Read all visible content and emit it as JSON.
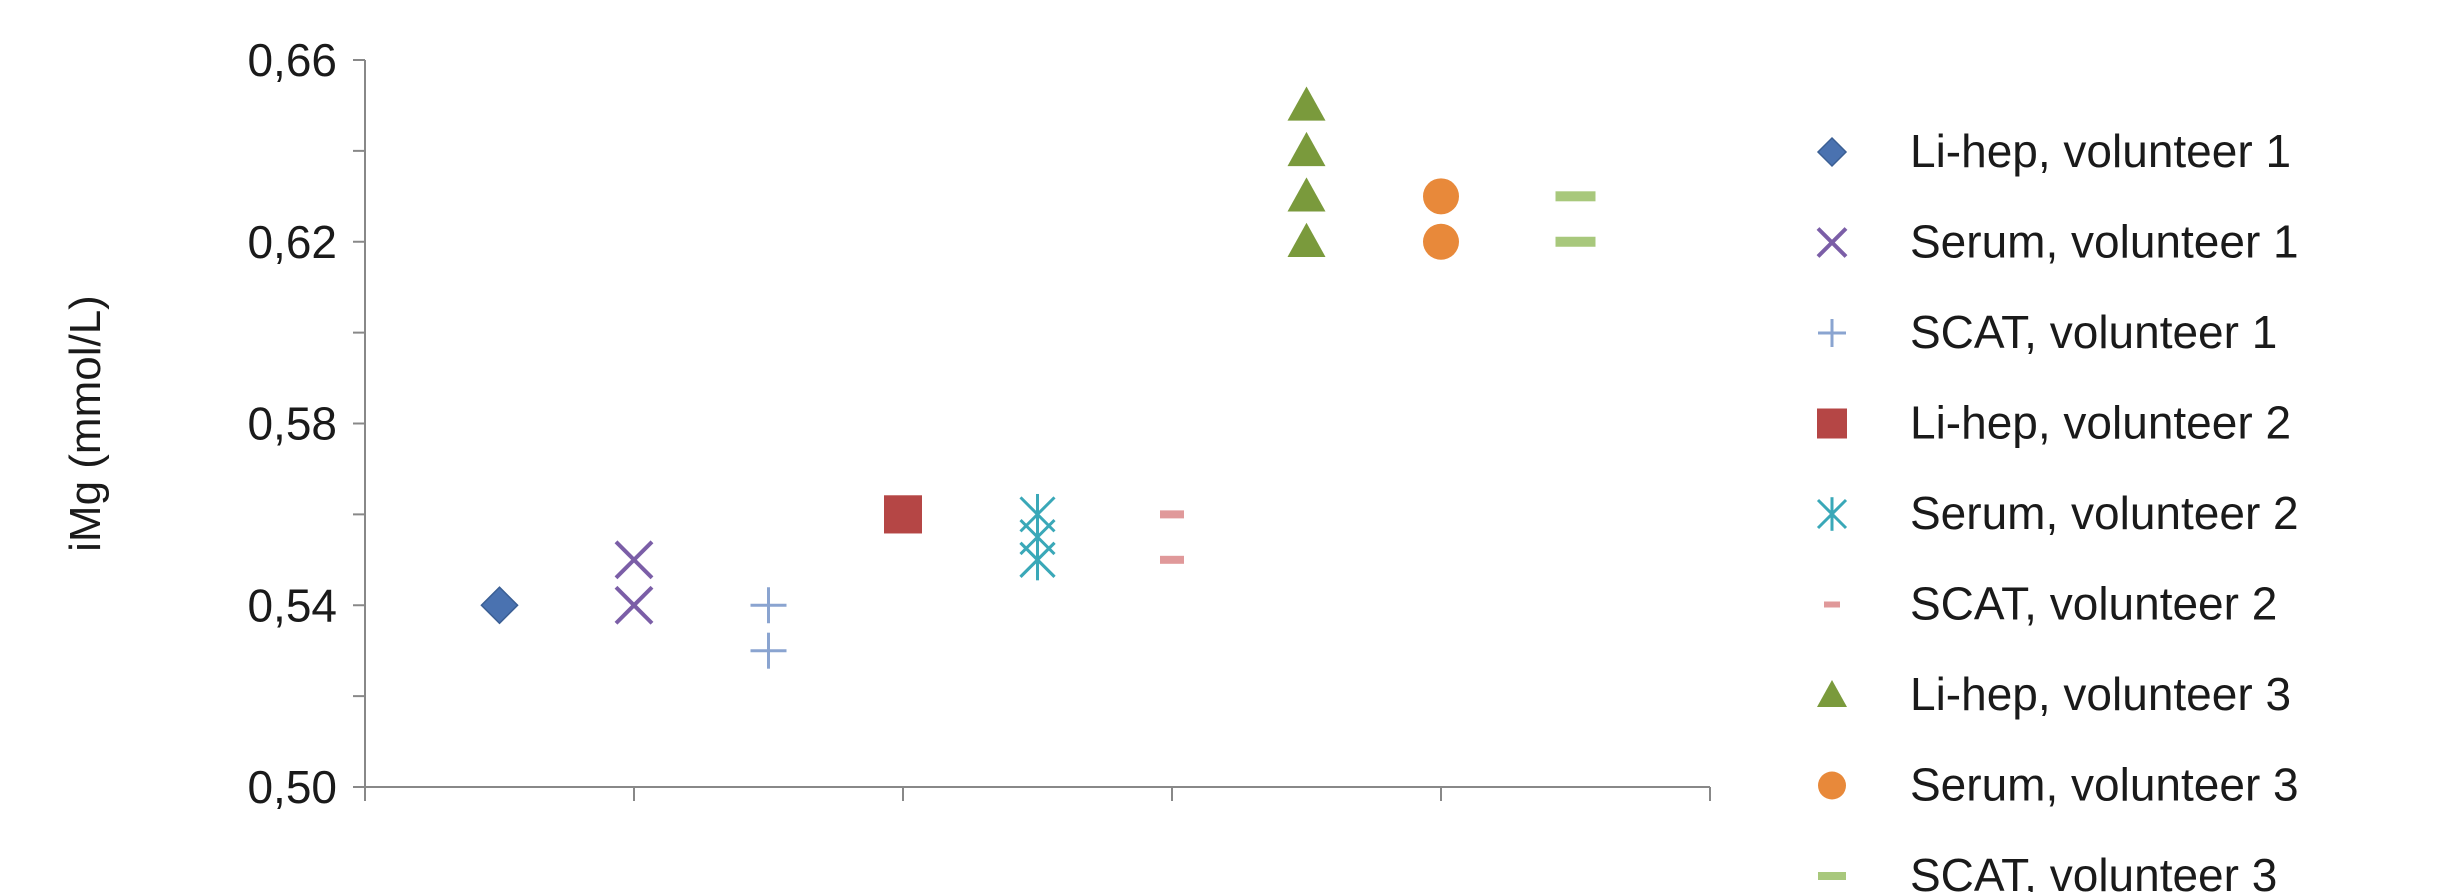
{
  "chart_data": {
    "type": "scatter",
    "title": "",
    "xlabel": "",
    "ylabel": "iMg (mmol/L)",
    "ylim": [
      0.5,
      0.66
    ],
    "ytick_major": [
      "0,50",
      "0,54",
      "0,58",
      "0,62",
      "0,66"
    ],
    "ytick_major_values": [
      0.5,
      0.54,
      0.58,
      0.62,
      0.66
    ],
    "ytick_minor_values": [
      0.52,
      0.56,
      0.6,
      0.64
    ],
    "xlim": [
      0,
      5
    ],
    "x_ticks": [
      0,
      1,
      2,
      3,
      4,
      5
    ],
    "grid": false,
    "legend_position": "right",
    "series": [
      {
        "name": "Li-hep, volunteer 1",
        "marker": "diamond",
        "color": "#4a72b0",
        "points": [
          {
            "x": 0.5,
            "y": 0.54
          },
          {
            "x": 0.5,
            "y": 0.54
          }
        ]
      },
      {
        "name": "Serum, volunteer 1",
        "marker": "x",
        "color": "#7b5ea7",
        "points": [
          {
            "x": 1.0,
            "y": 0.55
          },
          {
            "x": 1.0,
            "y": 0.54
          }
        ]
      },
      {
        "name": "SCAT, volunteer 1",
        "marker": "plus",
        "color": "#8aa4d0",
        "points": [
          {
            "x": 1.5,
            "y": 0.54
          },
          {
            "x": 1.5,
            "y": 0.53
          }
        ]
      },
      {
        "name": "Li-hep, volunteer 2",
        "marker": "square",
        "color": "#b54645",
        "points": [
          {
            "x": 2.0,
            "y": 0.56
          },
          {
            "x": 2.0,
            "y": 0.56
          }
        ]
      },
      {
        "name": "Serum, volunteer 2",
        "marker": "asterisk",
        "color": "#3aa8b8",
        "points": [
          {
            "x": 2.5,
            "y": 0.56
          },
          {
            "x": 2.5,
            "y": 0.555
          },
          {
            "x": 2.5,
            "y": 0.55
          },
          {
            "x": 2.5,
            "y": 0.55
          }
        ]
      },
      {
        "name": "SCAT, volunteer 2",
        "marker": "dash",
        "color": "#e0999a",
        "points": [
          {
            "x": 3.0,
            "y": 0.56
          },
          {
            "x": 3.0,
            "y": 0.55
          }
        ]
      },
      {
        "name": "Li-hep, volunteer 3",
        "marker": "triangle",
        "color": "#7a9a3c",
        "points": [
          {
            "x": 3.5,
            "y": 0.65
          },
          {
            "x": 3.5,
            "y": 0.64
          },
          {
            "x": 3.5,
            "y": 0.63
          },
          {
            "x": 3.5,
            "y": 0.62
          }
        ]
      },
      {
        "name": "Serum, volunteer 3",
        "marker": "circle",
        "color": "#e8893a",
        "points": [
          {
            "x": 4.0,
            "y": 0.63
          },
          {
            "x": 4.0,
            "y": 0.62
          }
        ]
      },
      {
        "name": "SCAT, volunteer 3",
        "marker": "bar",
        "color": "#a8c87c",
        "points": [
          {
            "x": 4.5,
            "y": 0.63
          },
          {
            "x": 4.5,
            "y": 0.62
          }
        ]
      }
    ]
  }
}
